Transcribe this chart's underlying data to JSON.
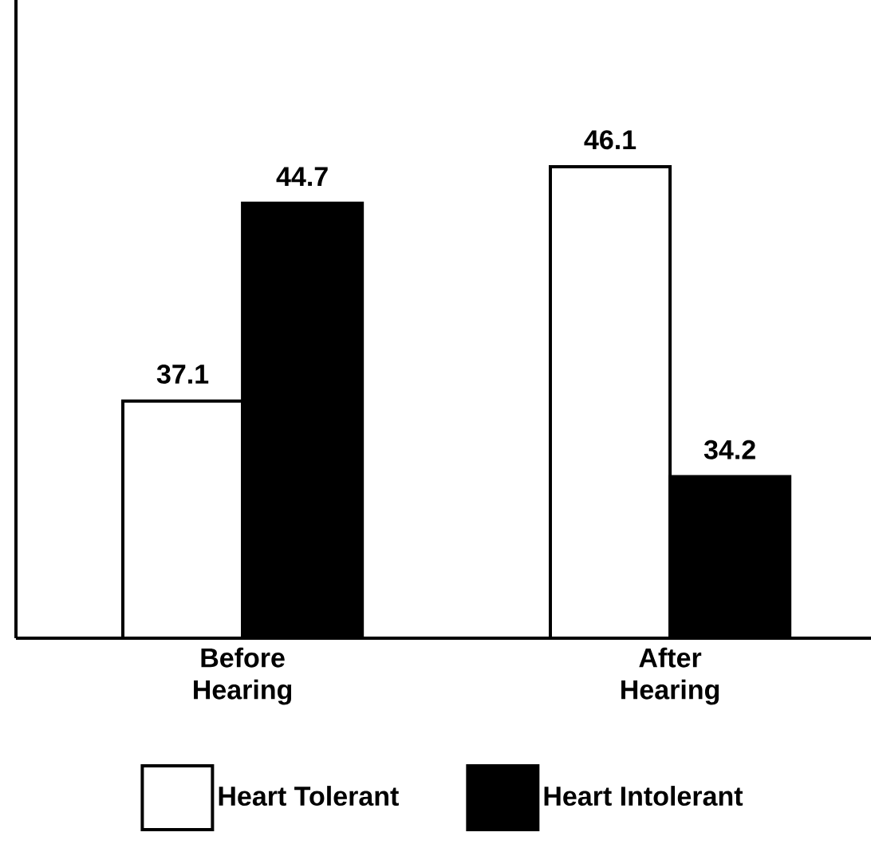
{
  "chart_data": {
    "type": "bar",
    "categories": [
      "Before Hearing",
      "After Hearing"
    ],
    "series": [
      {
        "name": "Heart Tolerant",
        "color": "#ffffff",
        "values": [
          37.1,
          46.1
        ]
      },
      {
        "name": "Heart Intolerant",
        "color": "#000000",
        "values": [
          44.7,
          34.2
        ]
      }
    ],
    "ylim": [
      28,
      52.5
    ],
    "tick_labels": "x",
    "data_labels": true,
    "legend": "bottom"
  }
}
